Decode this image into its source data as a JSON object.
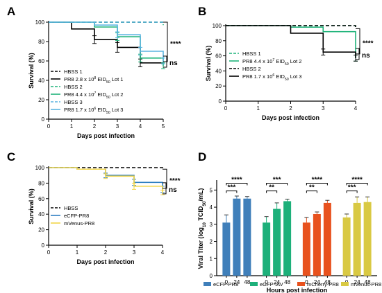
{
  "chart_data": [
    {
      "panel": "A",
      "type": "line",
      "xlabel": "Days post infection",
      "ylabel": "Survival (%)",
      "xlim": [
        0,
        5
      ],
      "ylim": [
        0,
        100
      ],
      "xticks": [
        "0",
        "1",
        "2",
        "3",
        "4",
        "5"
      ],
      "yticks": [
        "0",
        "20",
        "40",
        "60",
        "80",
        "100"
      ],
      "legend_position": "bottom-left",
      "series": [
        {
          "name": "HBSS 1",
          "color": "#000000",
          "dashed": true,
          "x": [
            0,
            5
          ],
          "y": [
            100,
            100
          ]
        },
        {
          "name": "PR8 2.8 x 10⁸ EID₅₀ Lot 1",
          "color": "#000000",
          "dashed": false,
          "x": [
            0,
            1,
            2,
            3,
            4,
            5
          ],
          "y": [
            100,
            93,
            82,
            74,
            58,
            57
          ],
          "err": [
            0,
            0,
            4,
            5,
            4,
            0
          ]
        },
        {
          "name": "HBSS 2",
          "color": "#1fb37a",
          "dashed": true,
          "x": [
            0,
            5
          ],
          "y": [
            100,
            97
          ]
        },
        {
          "name": "PR8 4.4 x 10⁷ EID₅₀ Lot 2",
          "color": "#1fb37a",
          "dashed": false,
          "x": [
            0,
            1,
            2,
            3,
            4,
            5
          ],
          "y": [
            100,
            100,
            95,
            85,
            63,
            55
          ],
          "err": [
            0,
            0,
            0,
            4,
            4,
            3
          ]
        },
        {
          "name": "HBSS 3",
          "color": "#5ab4e0",
          "dashed": true,
          "x": [
            0,
            5
          ],
          "y": [
            100,
            98
          ]
        },
        {
          "name": "PR8 1.7 x 10⁶ EID₅₀ Lot 3",
          "color": "#5ab4e0",
          "dashed": false,
          "x": [
            0,
            1,
            2,
            3,
            4,
            5
          ],
          "y": [
            100,
            100,
            97,
            87,
            70,
            60
          ],
          "err": [
            0,
            0,
            0,
            3,
            4,
            3
          ]
        }
      ],
      "annotations": [
        "****",
        "ns"
      ]
    },
    {
      "panel": "B",
      "type": "line",
      "xlabel": "Days post infection",
      "ylabel": "Survival (%)",
      "xlim": [
        0,
        4
      ],
      "ylim": [
        0,
        100
      ],
      "xticks": [
        "0",
        "1",
        "2",
        "3",
        "4"
      ],
      "yticks": [
        "0",
        "20",
        "40",
        "60",
        "80",
        "100"
      ],
      "legend_position": "bottom-left",
      "series": [
        {
          "name": "HBSS 1",
          "color": "#1fb37a",
          "dashed": true,
          "x": [
            0,
            4
          ],
          "y": [
            100,
            96
          ]
        },
        {
          "name": "PR8 4.4 x 10⁷ EID₅₀ Lot 2",
          "color": "#1fb37a",
          "dashed": false,
          "x": [
            0,
            1,
            2,
            3,
            4
          ],
          "y": [
            100,
            100,
            98,
            92,
            57
          ],
          "err": [
            0,
            0,
            0,
            0,
            4
          ]
        },
        {
          "name": "HBSS 2",
          "color": "#000000",
          "dashed": true,
          "x": [
            0,
            4
          ],
          "y": [
            100,
            98
          ]
        },
        {
          "name": "PR8 1.7 x 10⁶ EID₅₀ Lot 3",
          "color": "#000000",
          "dashed": false,
          "x": [
            0,
            1,
            2,
            3,
            4
          ],
          "y": [
            100,
            100,
            90,
            65,
            57
          ],
          "err": [
            0,
            0,
            0,
            4,
            4
          ]
        }
      ],
      "annotations": [
        "****",
        "ns"
      ]
    },
    {
      "panel": "C",
      "type": "line",
      "xlabel": "Days post infection",
      "ylabel": "Survival (%)",
      "xlim": [
        0,
        4
      ],
      "ylim": [
        0,
        100
      ],
      "xticks": [
        "0",
        "1",
        "2",
        "3",
        "4"
      ],
      "yticks": [
        "0",
        "20",
        "40",
        "60",
        "80",
        "100"
      ],
      "legend_position": "bottom-left",
      "series": [
        {
          "name": "HBSS",
          "color": "#000000",
          "dashed": true,
          "x": [
            0,
            4
          ],
          "y": [
            100,
            98
          ]
        },
        {
          "name": "eCFP-PR8",
          "color": "#2e7fc1",
          "dashed": false,
          "x": [
            0,
            1,
            2,
            3,
            4
          ],
          "y": [
            100,
            98,
            90,
            81,
            72
          ],
          "err": [
            0,
            0,
            3,
            4,
            4
          ]
        },
        {
          "name": "mVenus-PR8",
          "color": "#f2d648",
          "dashed": false,
          "x": [
            0,
            1,
            2,
            3,
            4
          ],
          "y": [
            100,
            98,
            89,
            76,
            68
          ],
          "err": [
            0,
            0,
            3,
            4,
            3
          ]
        }
      ],
      "annotations": [
        "****",
        "ns"
      ]
    },
    {
      "panel": "D",
      "type": "bar",
      "xlabel": "Hours post infection",
      "ylabel": "Viral Titer (log₁₀ TCID₅₀/mL)",
      "ylim": [
        0,
        5.5
      ],
      "yticks": [
        "0",
        "1",
        "2",
        "3",
        "4",
        "5"
      ],
      "categories": [
        "0",
        "24",
        "48"
      ],
      "legend_position": "bottom",
      "groups": [
        {
          "name": "eCFP-PR8",
          "color": "#3f7fba",
          "values": [
            3.1,
            4.5,
            4.5
          ],
          "err": [
            0.45,
            0.15,
            0.12
          ],
          "sig": [
            "***",
            "****"
          ]
        },
        {
          "name": "eGFP-IAV",
          "color": "#1db07a",
          "values": [
            3.1,
            3.9,
            4.35
          ],
          "err": [
            0.35,
            0.35,
            0.12
          ],
          "sig": [
            "**",
            "***"
          ]
        },
        {
          "name": "mCherry-PR8",
          "color": "#e8521e",
          "values": [
            3.1,
            3.6,
            4.25
          ],
          "err": [
            0.3,
            0.12,
            0.15
          ],
          "sig": [
            "**",
            "****"
          ]
        },
        {
          "name": "mVenus-PR8",
          "color": "#d9c943",
          "values": [
            3.4,
            4.25,
            4.3
          ],
          "err": [
            0.2,
            0.35,
            0.3
          ],
          "sig": [
            "***",
            "****"
          ]
        }
      ]
    }
  ]
}
